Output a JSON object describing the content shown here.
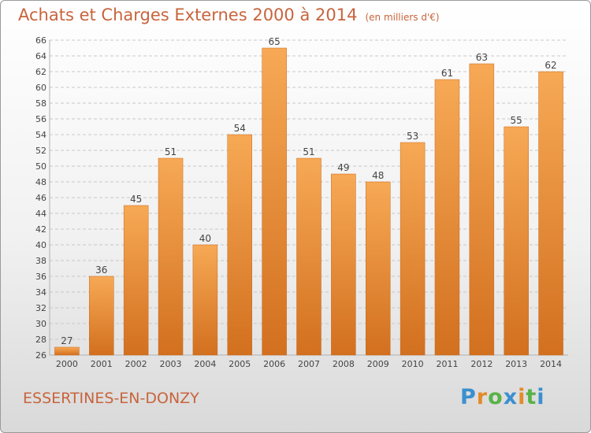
{
  "header": {
    "title": "Achats et Charges Externes 2000 à 2014",
    "unit": "(en milliers d'€)"
  },
  "footer": {
    "city": "ESSERTINES-EN-DONZY",
    "logo": "Proxiti"
  },
  "chart_data": {
    "type": "bar",
    "title": "Achats et Charges Externes 2000 à 2014",
    "subtitle": "(en milliers d'€)",
    "xlabel": "",
    "ylabel": "",
    "categories": [
      "2000",
      "2001",
      "2002",
      "2003",
      "2004",
      "2005",
      "2006",
      "2007",
      "2008",
      "2009",
      "2010",
      "2011",
      "2012",
      "2013",
      "2014"
    ],
    "values": [
      27,
      36,
      45,
      51,
      40,
      54,
      65,
      51,
      49,
      48,
      53,
      61,
      63,
      55,
      62
    ],
    "ylim": [
      26,
      66
    ],
    "ytick_step": 2,
    "grid": true,
    "legend": "none",
    "colors": {
      "bar_light": "#f7a955",
      "bar_dark": "#d2701f",
      "grid": "#c8c8c8",
      "text": "#444444",
      "title": "#c8643c"
    }
  }
}
